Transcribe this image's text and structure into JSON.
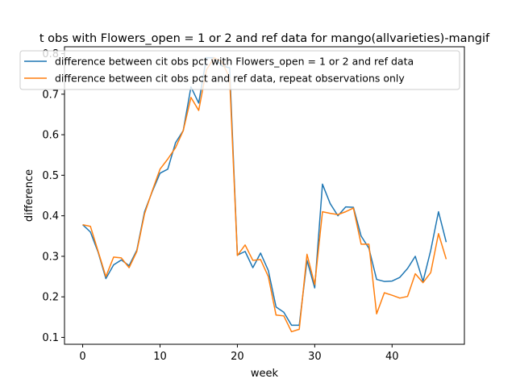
{
  "chart_data": {
    "type": "line",
    "title": "t obs with Flowers_open = 1 or 2 and ref data for mango(allvarieties)-mangif",
    "xlabel": "week",
    "ylabel": "difference",
    "xlim": [
      -2.35,
      49.35
    ],
    "ylim": [
      0.083,
      0.817
    ],
    "xticks": [
      0,
      10,
      20,
      30,
      40
    ],
    "yticks": [
      0.1,
      0.2,
      0.3,
      0.4,
      0.5,
      0.6,
      0.7,
      0.8
    ],
    "ytick_labels": [
      "0.1",
      "0.2",
      "0.3",
      "0.4",
      "0.5",
      "0.6",
      "0.7",
      "0.8"
    ],
    "legend_position": "top",
    "series": [
      {
        "name": "difference between cit obs pct with Flowers_open = 1 or 2 and ref data",
        "color": "#1f77b4",
        "x": [
          0,
          1,
          2,
          3,
          4,
          5,
          6,
          7,
          8,
          9,
          10,
          11,
          12,
          13,
          14,
          15,
          16,
          17,
          18,
          19,
          20,
          21,
          22,
          23,
          24,
          25,
          26,
          27,
          28,
          29,
          30,
          31,
          32,
          33,
          34,
          35,
          36,
          37,
          38,
          39,
          40,
          41,
          42,
          43,
          44,
          45,
          46,
          47
        ],
        "y": [
          0.378,
          0.36,
          0.31,
          0.245,
          0.279,
          0.291,
          0.277,
          0.315,
          0.41,
          0.46,
          0.505,
          0.515,
          0.58,
          0.61,
          0.718,
          0.678,
          0.79,
          0.79,
          0.77,
          0.765,
          0.303,
          0.312,
          0.272,
          0.308,
          0.265,
          0.175,
          0.162,
          0.13,
          0.13,
          0.29,
          0.222,
          0.478,
          0.43,
          0.4,
          0.422,
          0.421,
          0.35,
          0.32,
          0.243,
          0.238,
          0.239,
          0.248,
          0.27,
          0.3,
          0.238,
          0.315,
          0.41,
          0.335
        ]
      },
      {
        "name": "difference between cit obs pct and ref data, repeat observations only",
        "color": "#ff7f0e",
        "x": [
          0,
          1,
          2,
          3,
          4,
          5,
          6,
          7,
          8,
          9,
          10,
          11,
          12,
          13,
          14,
          15,
          16,
          17,
          18,
          19,
          20,
          21,
          22,
          23,
          24,
          25,
          26,
          27,
          28,
          29,
          30,
          31,
          32,
          33,
          34,
          35,
          36,
          37,
          38,
          39,
          40,
          41,
          42,
          43,
          44,
          45,
          46,
          47
        ],
        "y": [
          0.378,
          0.374,
          0.312,
          0.25,
          0.298,
          0.296,
          0.272,
          0.312,
          0.405,
          0.462,
          0.515,
          0.54,
          0.568,
          0.61,
          0.692,
          0.66,
          0.76,
          0.79,
          0.78,
          0.74,
          0.302,
          0.328,
          0.29,
          0.292,
          0.25,
          0.155,
          0.153,
          0.114,
          0.12,
          0.305,
          0.23,
          0.41,
          0.406,
          0.403,
          0.41,
          0.419,
          0.33,
          0.33,
          0.158,
          0.21,
          0.204,
          0.197,
          0.201,
          0.257,
          0.235,
          0.26,
          0.356,
          0.293
        ]
      }
    ]
  }
}
